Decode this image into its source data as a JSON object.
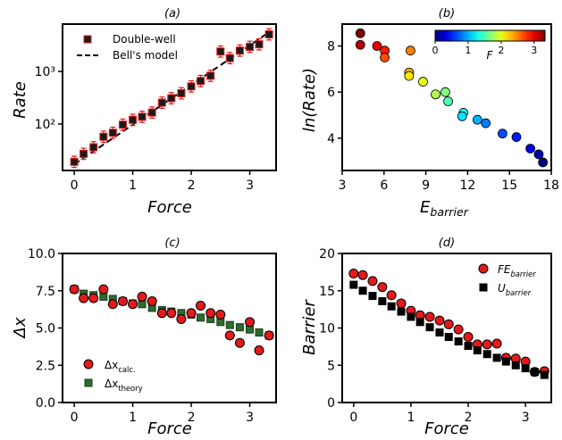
{
  "chart_data": [
    {
      "id": "a",
      "type": "scatter",
      "title": "(a)",
      "xlabel": "Force",
      "ylabel": "Rate",
      "yscale": "log",
      "xlim": [
        -0.2,
        3.45
      ],
      "ylim": [
        13,
        8000
      ],
      "xticks": [
        0,
        1,
        2,
        3
      ],
      "yticks": [
        {
          "v": 100,
          "label": "10²"
        },
        {
          "v": 1000,
          "label": "10³"
        }
      ],
      "legend": "top-left",
      "series": [
        {
          "name": "Double-well",
          "marker": "square",
          "color": "#e31a1c",
          "x": [
            0.0,
            0.16,
            0.33,
            0.5,
            0.66,
            0.83,
            1.0,
            1.16,
            1.33,
            1.5,
            1.66,
            1.83,
            2.0,
            2.16,
            2.33,
            2.5,
            2.66,
            2.83,
            3.0,
            3.16,
            3.33
          ],
          "y": [
            19,
            27,
            36,
            57,
            68,
            97,
            120,
            137,
            165,
            255,
            310,
            385,
            520,
            660,
            830,
            2400,
            1800,
            2500,
            2950,
            3300,
            5100
          ]
        },
        {
          "name": "Bell's model",
          "style": "dashed",
          "color": "#000000",
          "x": [
            0.0,
            3.33
          ],
          "y": [
            17,
            5600
          ]
        }
      ]
    },
    {
      "id": "b",
      "type": "scatter",
      "title": "(b)",
      "xlabel": "E_barrier",
      "xlabel_main": "E",
      "xlabel_sub": "barrier",
      "ylabel": "ln(Rate)",
      "xlim": [
        3,
        18
      ],
      "ylim": [
        2.6,
        8.95
      ],
      "xticks": [
        3,
        6,
        9,
        12,
        15,
        18
      ],
      "yticks": [
        4,
        6,
        8
      ],
      "colorbar": {
        "label": "F",
        "min": 0,
        "max": 3.33,
        "ticks": [
          0,
          1,
          2,
          3
        ],
        "position": "top-right"
      },
      "points": [
        {
          "x": 4.3,
          "y": 8.55,
          "f": 3.33
        },
        {
          "x": 4.3,
          "y": 8.05,
          "f": 3.16
        },
        {
          "x": 5.5,
          "y": 8.0,
          "f": 3.0
        },
        {
          "x": 6.05,
          "y": 7.8,
          "f": 2.83
        },
        {
          "x": 6.05,
          "y": 7.5,
          "f": 2.66
        },
        {
          "x": 7.9,
          "y": 7.8,
          "f": 2.5
        },
        {
          "x": 7.8,
          "y": 6.85,
          "f": 2.33
        },
        {
          "x": 7.8,
          "y": 6.7,
          "f": 2.16
        },
        {
          "x": 8.8,
          "y": 6.45,
          "f": 2.0
        },
        {
          "x": 9.7,
          "y": 5.9,
          "f": 1.83
        },
        {
          "x": 10.4,
          "y": 6.0,
          "f": 1.66
        },
        {
          "x": 10.6,
          "y": 5.6,
          "f": 1.5
        },
        {
          "x": 11.7,
          "y": 5.1,
          "f": 1.33
        },
        {
          "x": 11.6,
          "y": 4.95,
          "f": 1.16
        },
        {
          "x": 12.7,
          "y": 4.8,
          "f": 1.0
        },
        {
          "x": 13.3,
          "y": 4.65,
          "f": 0.83
        },
        {
          "x": 14.5,
          "y": 4.2,
          "f": 0.66
        },
        {
          "x": 15.5,
          "y": 4.05,
          "f": 0.5
        },
        {
          "x": 16.5,
          "y": 3.55,
          "f": 0.33
        },
        {
          "x": 17.1,
          "y": 3.3,
          "f": 0.16
        },
        {
          "x": 17.4,
          "y": 2.95,
          "f": 0.0
        }
      ]
    },
    {
      "id": "c",
      "type": "scatter",
      "title": "(c)",
      "xlabel": "Force",
      "ylabel": "Δx",
      "xlim": [
        -0.2,
        3.45
      ],
      "ylim": [
        0,
        10
      ],
      "xticks": [
        0,
        1,
        2,
        3
      ],
      "yticks": [
        {
          "v": 0,
          "label": "0.0"
        },
        {
          "v": 2.5,
          "label": "2.5"
        },
        {
          "v": 5,
          "label": "5.0"
        },
        {
          "v": 7.5,
          "label": "7.5"
        },
        {
          "v": 10,
          "label": "10.0"
        }
      ],
      "legend": "bottom-left",
      "series": [
        {
          "name": "Δx_calc.",
          "name_main": "Δx",
          "name_sub": "calc.",
          "marker": "circle",
          "color": "#e31a1c",
          "x": [
            0.0,
            0.16,
            0.33,
            0.5,
            0.66,
            0.83,
            1.0,
            1.16,
            1.33,
            1.5,
            1.66,
            1.83,
            2.0,
            2.16,
            2.33,
            2.5,
            2.66,
            2.83,
            3.0,
            3.16,
            3.33
          ],
          "y": [
            7.6,
            7.0,
            7.0,
            7.6,
            6.6,
            6.8,
            6.6,
            7.1,
            6.8,
            6.0,
            6.0,
            5.6,
            6.0,
            6.5,
            6.0,
            5.9,
            4.5,
            4.0,
            5.4,
            3.5,
            4.5
          ]
        },
        {
          "name": "Δx_theory",
          "name_main": "Δx",
          "name_sub": "theory",
          "marker": "square",
          "color": "#2e6b2e",
          "x": [
            0.0,
            0.16,
            0.33,
            0.5,
            0.66,
            0.83,
            1.0,
            1.16,
            1.33,
            1.5,
            1.66,
            1.83,
            2.0,
            2.16,
            2.33,
            2.5,
            2.66,
            2.83,
            3.0,
            3.16,
            3.33
          ],
          "y": [
            7.6,
            7.3,
            7.2,
            7.1,
            6.95,
            6.8,
            6.65,
            6.6,
            6.35,
            6.2,
            6.1,
            6.0,
            5.9,
            5.7,
            5.6,
            5.4,
            5.2,
            5.05,
            4.9,
            4.7,
            4.5
          ]
        }
      ]
    },
    {
      "id": "d",
      "type": "scatter",
      "title": "(d)",
      "xlabel": "Force",
      "ylabel": "Barrier",
      "xlim": [
        -0.2,
        3.45
      ],
      "ylim": [
        0,
        20
      ],
      "xticks": [
        0,
        1,
        2,
        3
      ],
      "yticks": [
        {
          "v": 0,
          "label": "0"
        },
        {
          "v": 5,
          "label": "5"
        },
        {
          "v": 10,
          "label": "10"
        },
        {
          "v": 15,
          "label": "15"
        },
        {
          "v": 20,
          "label": "20"
        }
      ],
      "legend": "top-right",
      "series": [
        {
          "name": "FE_barrier",
          "name_main": "FE",
          "name_sub": "barrier",
          "marker": "circle",
          "color": "#e31a1c",
          "x": [
            0.0,
            0.16,
            0.33,
            0.5,
            0.66,
            0.83,
            1.0,
            1.16,
            1.33,
            1.5,
            1.66,
            1.83,
            2.0,
            2.16,
            2.33,
            2.5,
            2.66,
            2.83,
            3.0,
            3.16,
            3.33
          ],
          "y": [
            17.3,
            17.1,
            16.3,
            15.5,
            14.4,
            13.3,
            12.3,
            11.7,
            11.5,
            11.0,
            10.5,
            9.8,
            8.8,
            7.8,
            7.8,
            7.9,
            6.0,
            5.9,
            5.5,
            4.1,
            4.2
          ]
        },
        {
          "name": "U_barrier",
          "name_main": "U",
          "name_sub": "barrier",
          "marker": "square",
          "color": "#000000",
          "x": [
            0.0,
            0.16,
            0.33,
            0.5,
            0.66,
            0.83,
            1.0,
            1.16,
            1.33,
            1.5,
            1.66,
            1.83,
            2.0,
            2.16,
            2.33,
            2.5,
            2.66,
            2.83,
            3.0,
            3.16,
            3.33
          ],
          "y": [
            15.8,
            15.0,
            14.3,
            13.6,
            12.9,
            12.2,
            11.5,
            10.8,
            10.1,
            9.4,
            8.8,
            8.2,
            7.6,
            7.0,
            6.5,
            6.0,
            5.5,
            5.0,
            4.6,
            4.1,
            3.7
          ]
        }
      ]
    }
  ]
}
